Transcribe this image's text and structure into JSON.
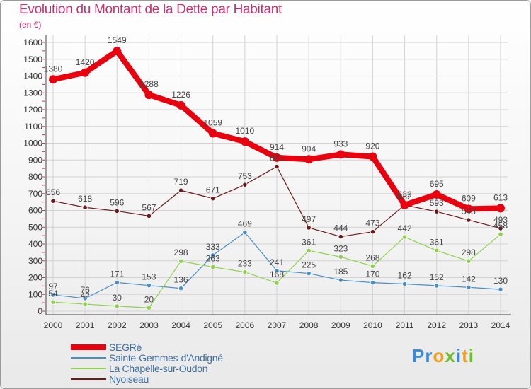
{
  "title": "Evolution du Montant de la Dette par Habitant",
  "subtitle": "(en €)",
  "logo": {
    "letters": [
      "P",
      "r",
      "o",
      "x",
      "i",
      "t",
      "i"
    ],
    "colors": [
      "#3a8ad6",
      "#3a8ad6",
      "#f0a020",
      "#6cbf2a",
      "#3a8ad6",
      "#f0a020",
      "#6cbf2a"
    ]
  },
  "chart_data": {
    "type": "line",
    "x": [
      "2000",
      "2001",
      "2002",
      "2003",
      "2004",
      "2005",
      "2006",
      "2007",
      "2008",
      "2009",
      "2010",
      "2011",
      "2012",
      "2013",
      "2014"
    ],
    "ylim": [
      0,
      1600
    ],
    "yticks": [
      "0",
      "100",
      "200",
      "300",
      "400",
      "500",
      "600",
      "700",
      "800",
      "900",
      "1000",
      "1100",
      "1200",
      "1300",
      "1400",
      "1500",
      "1600"
    ],
    "grid": true,
    "legend_position": "bottom-left",
    "series": [
      {
        "name": "SEGRé",
        "color": "#e8000e",
        "values": [
          1380,
          1420,
          1549,
          1288,
          1226,
          1059,
          1010,
          914,
          904,
          933,
          920,
          632,
          695,
          609,
          613
        ],
        "labels": [
          "1380",
          "1420",
          "1549",
          "1288",
          "1226",
          "1059",
          "1010",
          "914",
          "904",
          "933",
          "920",
          "632",
          "695",
          "609",
          "613"
        ]
      },
      {
        "name": "Sainte-Gemmes-d'Andigné",
        "color": "#4a8ec8",
        "values": [
          97,
          76,
          171,
          153,
          136,
          333,
          469,
          241,
          225,
          185,
          170,
          162,
          152,
          142,
          130
        ],
        "labels": [
          "97",
          "76",
          "171",
          "153",
          "136",
          "333",
          "469",
          "241",
          "225",
          "185",
          "170",
          "162",
          "152",
          "142",
          "130"
        ]
      },
      {
        "name": "La Chapelle-sur-Oudon",
        "color": "#8fd14f",
        "values": [
          54,
          42,
          30,
          20,
          298,
          263,
          233,
          168,
          361,
          323,
          268,
          442,
          361,
          298,
          458
        ],
        "labels": [
          "54",
          "42",
          "30",
          "20",
          "298",
          "263",
          "233",
          "168",
          "361",
          "323",
          "268",
          "442",
          "361",
          "298",
          "458"
        ]
      },
      {
        "name": "Nyoiseau",
        "color": "#6b1a1a",
        "values": [
          656,
          618,
          596,
          567,
          719,
          671,
          753,
          861,
          497,
          444,
          473,
          632,
          593,
          543,
          493
        ],
        "labels": [
          "656",
          "618",
          "596",
          "567",
          "719",
          "671",
          "753",
          "861",
          "497",
          "444",
          "473",
          "632",
          "593",
          "543",
          "493"
        ]
      }
    ]
  }
}
